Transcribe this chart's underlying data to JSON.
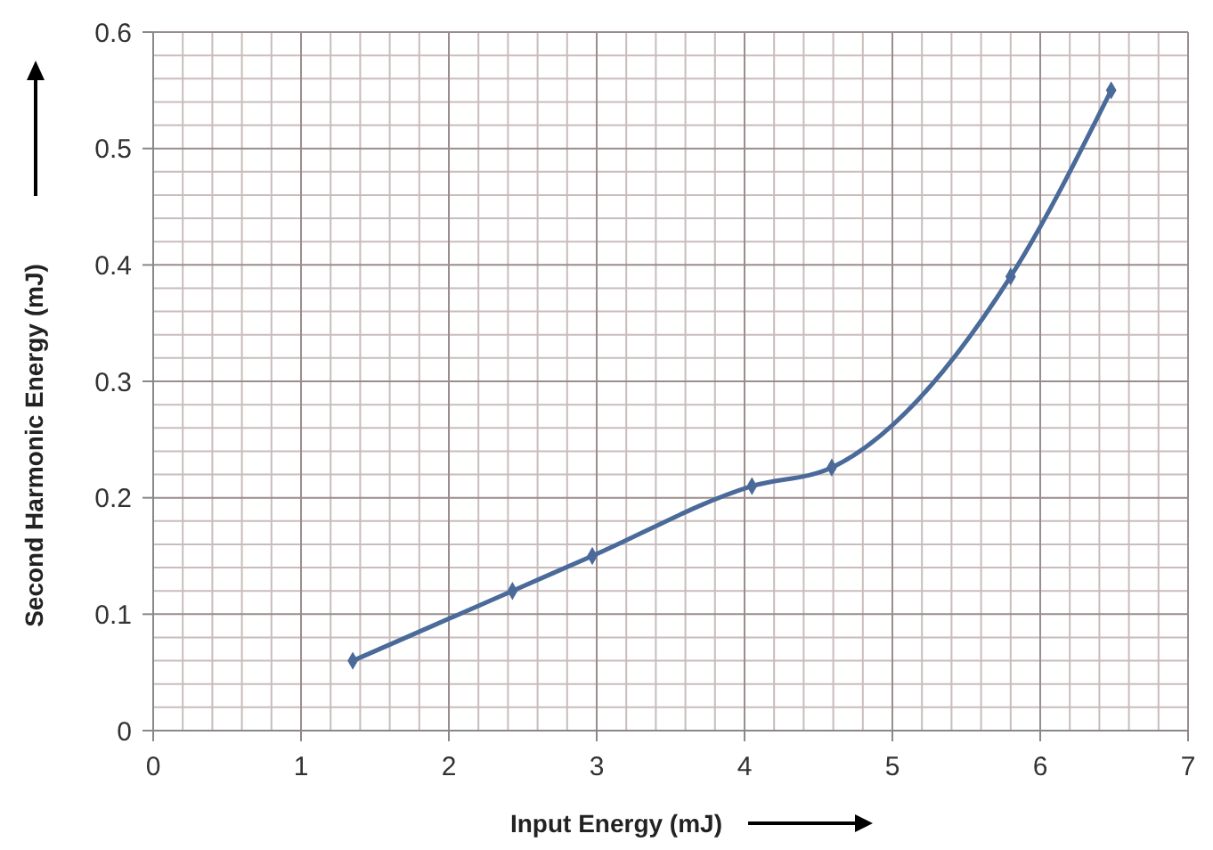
{
  "chart_data": {
    "type": "line",
    "xlabel": "Input Energy (mJ)",
    "ylabel": "Second Harmonic Energy (mJ)",
    "x": [
      1.35,
      2.43,
      2.97,
      4.05,
      4.59,
      5.8,
      6.48
    ],
    "series": [
      {
        "color": "#4a6a9a",
        "values": [
          0.06,
          0.12,
          0.15,
          0.21,
          0.226,
          0.39,
          0.55
        ]
      }
    ],
    "xlim": [
      0,
      7
    ],
    "xticks": [
      0,
      1,
      2,
      3,
      4,
      5,
      6,
      7
    ],
    "ylim": [
      0,
      0.6
    ],
    "yticks": [
      0,
      0.1,
      0.2,
      0.3,
      0.4,
      0.5,
      0.6
    ],
    "grid": true,
    "marker": "diamond",
    "line_style": "solid"
  }
}
